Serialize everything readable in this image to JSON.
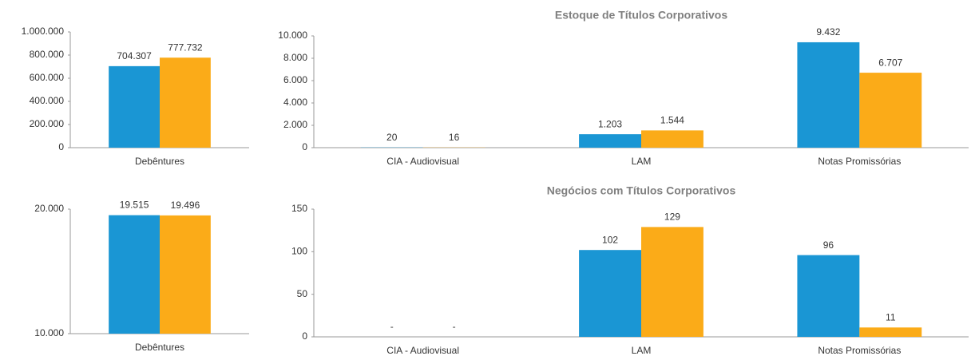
{
  "chart_data": [
    {
      "type": "bar",
      "categories": [
        "Debêntures"
      ],
      "series": [
        {
          "color": "#1a96d4",
          "values": [
            704307
          ],
          "value_labels": [
            "704.307"
          ]
        },
        {
          "color": "#fbab18",
          "values": [
            777732
          ],
          "value_labels": [
            "777.732"
          ]
        }
      ],
      "ylim": [
        0,
        1000000
      ],
      "yticks": [
        0,
        {
          "value": 200000,
          "label": "200.000"
        },
        {
          "value": 400000,
          "label": "400.000"
        },
        {
          "value": 600000,
          "label": "600.000"
        },
        {
          "value": 800000,
          "label": "800.000"
        },
        {
          "value": 1000000,
          "label": "1.000.000"
        }
      ]
    },
    {
      "type": "bar",
      "title": "Estoque de Títulos Corporativos",
      "categories": [
        "CIA - Audiovisual",
        "LAM",
        "Notas Promissórias"
      ],
      "series": [
        {
          "color": "#1a96d4",
          "values": [
            20,
            1203,
            9432
          ],
          "value_labels": [
            "20",
            "1.203",
            "9.432"
          ]
        },
        {
          "color": "#fbab18",
          "values": [
            16,
            1544,
            6707
          ],
          "value_labels": [
            "16",
            "1.544",
            "6.707"
          ]
        }
      ],
      "ylim": [
        0,
        10000
      ],
      "yticks": [
        0,
        {
          "value": 2000,
          "label": "2.000"
        },
        {
          "value": 4000,
          "label": "4.000"
        },
        {
          "value": 6000,
          "label": "6.000"
        },
        {
          "value": 8000,
          "label": "8.000"
        },
        {
          "value": 10000,
          "label": "10.000"
        }
      ]
    },
    {
      "type": "bar",
      "categories": [
        "Debêntures"
      ],
      "series": [
        {
          "color": "#1a96d4",
          "values": [
            19515
          ],
          "value_labels": [
            "19.515"
          ]
        },
        {
          "color": "#fbab18",
          "values": [
            19496
          ],
          "value_labels": [
            "19.496"
          ]
        }
      ],
      "ylim": [
        10000,
        20000
      ],
      "yticks": [
        {
          "value": 10000,
          "label": "10.000"
        },
        {
          "value": 20000,
          "label": "20.000"
        }
      ]
    },
    {
      "type": "bar",
      "title": "Negócios com Títulos Corporativos",
      "categories": [
        "CIA - Audiovisual",
        "LAM",
        "Notas Promissórias"
      ],
      "series": [
        {
          "color": "#1a96d4",
          "values": [
            null,
            102,
            96
          ],
          "value_labels": [
            "-",
            "102",
            "96"
          ]
        },
        {
          "color": "#fbab18",
          "values": [
            null,
            129,
            11
          ],
          "value_labels": [
            "-",
            "129",
            "11"
          ]
        }
      ],
      "ylim": [
        0,
        150
      ],
      "yticks": [
        0,
        50,
        100,
        150
      ]
    }
  ]
}
